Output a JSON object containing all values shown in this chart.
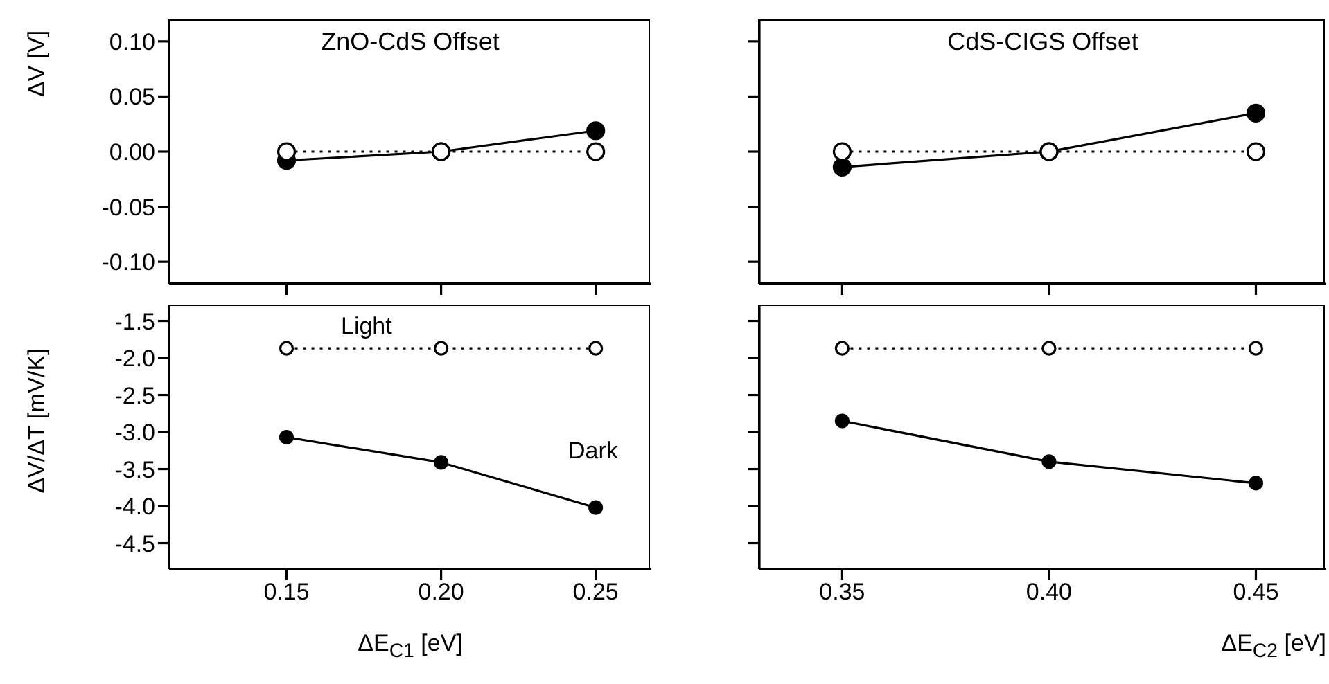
{
  "chart_data": [
    {
      "type": "line",
      "title": "ZnO-CdS Offset",
      "ylabel": "ΔV [V]",
      "x": [
        0.15,
        0.2,
        0.25
      ],
      "xlim": [
        0.112,
        0.268
      ],
      "xticks": [
        0.15,
        0.2,
        0.25
      ],
      "ylim": [
        -0.12,
        0.12
      ],
      "yticks": [
        {
          "value": -0.1,
          "label": "-0.10"
        },
        -0.05,
        {
          "value": 0,
          "label": "0.00"
        },
        0.05,
        {
          "value": 0.1,
          "label": "0.10"
        }
      ],
      "tick_labels": "y",
      "marker": "circle",
      "series": [
        {
          "color": "#000000",
          "line_style": "solid",
          "values": [
            -0.008,
            0,
            0.019
          ]
        },
        {
          "color": "#ffffff",
          "line_style": "dotted",
          "values": [
            0,
            0,
            0
          ]
        }
      ]
    },
    {
      "type": "line",
      "title": "CdS-CIGS Offset",
      "x": [
        0.35,
        0.4,
        0.45
      ],
      "xlim": [
        0.33,
        0.467
      ],
      "xticks": [
        0.35,
        0.4,
        0.45
      ],
      "ylim": [
        -0.12,
        0.12
      ],
      "yticks": [
        -0.1,
        -0.05,
        0,
        0.05,
        0.1
      ],
      "tick_labels": false,
      "marker": "circle",
      "series": [
        {
          "color": "#000000",
          "line_style": "solid",
          "values": [
            -0.014,
            0,
            0.035
          ]
        },
        {
          "color": "#ffffff",
          "line_style": "dotted",
          "values": [
            0,
            0,
            0
          ]
        }
      ]
    },
    {
      "type": "line",
      "ylabel": "ΔV/ΔT [mV/K]",
      "xlabel": "ΔE$_{C1}$ [eV]",
      "x": [
        0.15,
        0.2,
        0.25
      ],
      "xlim": [
        0.112,
        0.268
      ],
      "xticks": [
        0.15,
        {
          "value": 0.2,
          "label": "0.20"
        },
        0.25
      ],
      "ylim": [
        -4.85,
        -1.28
      ],
      "yticks": [
        -4.5,
        {
          "value": -4,
          "label": "-4.0"
        },
        -3.5,
        {
          "value": -3,
          "label": "-3.0"
        },
        -2.5,
        {
          "value": -2,
          "label": "-2.0"
        },
        -1.5
      ],
      "marker": "circle",
      "annotations": [
        "Light",
        "Dark"
      ],
      "series": [
        {
          "color": "#000000",
          "line_style": "solid",
          "values": [
            -3.07,
            -3.41,
            -4.02
          ]
        },
        {
          "color": "#ffffff",
          "line_style": "dotted",
          "values": [
            -1.87,
            -1.87,
            -1.87
          ]
        }
      ]
    },
    {
      "type": "line",
      "xlabel": "ΔE$_{C2}$ [eV]",
      "x": [
        0.35,
        0.4,
        0.45
      ],
      "xlim": [
        0.33,
        0.467
      ],
      "xticks": [
        0.35,
        {
          "value": 0.4,
          "label": "0.40"
        },
        0.45
      ],
      "ylim": [
        -4.85,
        -1.28
      ],
      "yticks": [
        -4.5,
        -4,
        -3.5,
        -3,
        -2.5,
        -2,
        -1.5
      ],
      "tick_labels": "x",
      "marker": "circle",
      "series": [
        {
          "color": "#000000",
          "line_style": "solid",
          "values": [
            -2.85,
            -3.4,
            -3.69
          ]
        },
        {
          "color": "#ffffff",
          "line_style": "dotted",
          "values": [
            -1.87,
            -1.87,
            -1.87
          ]
        }
      ]
    }
  ]
}
